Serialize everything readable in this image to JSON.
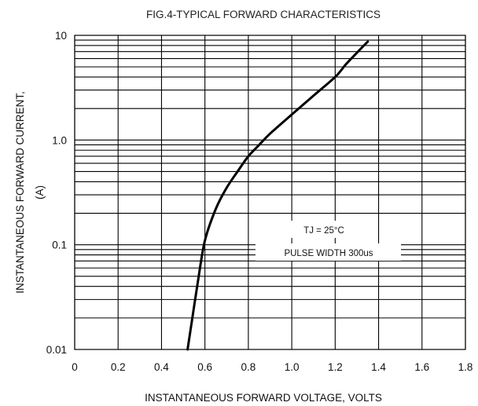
{
  "chart_data": {
    "type": "line",
    "title": "FIG.4-TYPICAL FORWARD CHARACTERISTICS",
    "xlabel": "INSTANTANEOUS FORWARD VOLTAGE, VOLTS",
    "ylabel": "INSTANTANEOUS FORWARD CURRENT,",
    "ylabel_unit": "(A)",
    "xlim": [
      0,
      1.8
    ],
    "ylim": [
      0.01,
      10
    ],
    "yscale": "log",
    "grid": true,
    "x_ticks": [
      "0",
      "0.2",
      "0.4",
      "0.6",
      "0.8",
      "1.0",
      "1.2",
      "1.4",
      "1.6",
      "1.8"
    ],
    "y_ticks": [
      "0.01",
      "0.1",
      "1.0",
      "10"
    ],
    "series": [
      {
        "x": [
          0.52,
          0.545,
          0.57,
          0.6,
          0.65,
          0.7,
          0.75,
          0.8,
          0.85,
          0.9,
          1.0,
          1.1,
          1.2,
          1.25,
          1.3,
          1.35
        ],
        "y": [
          0.01,
          0.022,
          0.048,
          0.11,
          0.22,
          0.35,
          0.5,
          0.7,
          0.9,
          1.15,
          1.75,
          2.65,
          4.0,
          5.3,
          6.8,
          8.7
        ]
      }
    ],
    "annotations": [
      "TJ = 25°C",
      "PULSE WIDTH 300us"
    ]
  }
}
